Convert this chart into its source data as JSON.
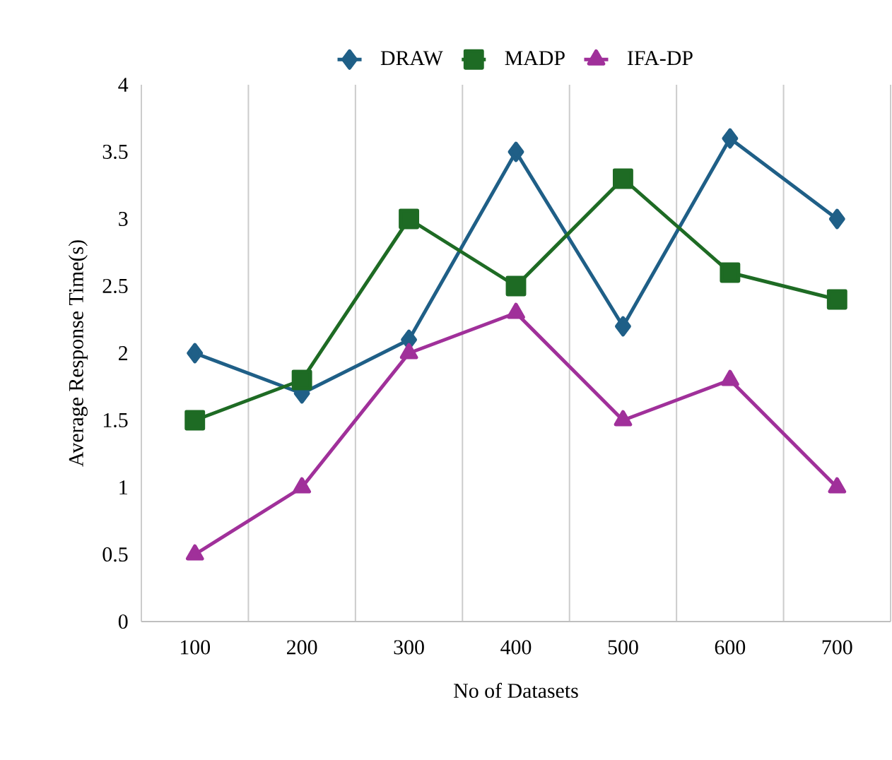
{
  "chart_data": {
    "type": "line",
    "xlabel": "No of Datasets",
    "ylabel": "Average Response Time(s)",
    "categories": [
      "100",
      "200",
      "300",
      "400",
      "500",
      "600",
      "700"
    ],
    "series": [
      {
        "name": "DRAW",
        "color": "#1f5f87",
        "marker": "diamond",
        "values": [
          2.0,
          1.7,
          2.1,
          3.5,
          2.2,
          3.6,
          3.0
        ]
      },
      {
        "name": "MADP",
        "color": "#1e6b24",
        "marker": "square",
        "values": [
          1.5,
          1.8,
          3.0,
          2.5,
          3.3,
          2.6,
          2.4
        ]
      },
      {
        "name": "IFA-DP",
        "color": "#a0309a",
        "marker": "triangle",
        "values": [
          0.5,
          1.0,
          2.0,
          2.3,
          1.5,
          1.8,
          1.0
        ]
      }
    ],
    "ylim": [
      0,
      4
    ],
    "yticks": [
      0,
      0.5,
      1,
      1.5,
      2,
      2.5,
      3,
      3.5,
      4
    ],
    "grid": "x",
    "legend": "top",
    "line_style": "solid"
  }
}
